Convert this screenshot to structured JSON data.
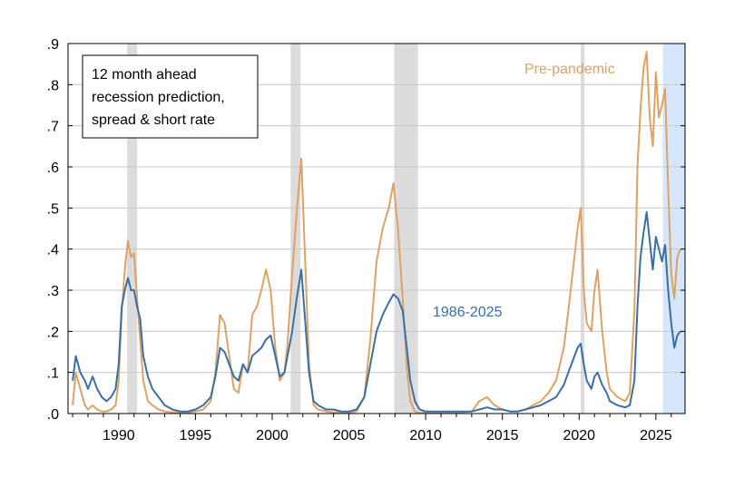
{
  "chart_data": {
    "type": "line",
    "title": "",
    "xlabel": "",
    "ylabel": "",
    "xlim": [
      1986.7,
      2026.9
    ],
    "ylim": [
      0,
      0.9
    ],
    "x_ticks": [
      1990,
      1995,
      2000,
      2005,
      2010,
      2015,
      2020,
      2025
    ],
    "x_tick_labels": [
      "1990",
      "1995",
      "2000",
      "2005",
      "2010",
      "2015",
      "2020",
      "2025"
    ],
    "y_ticks": [
      0,
      0.1,
      0.2,
      0.3,
      0.4,
      0.5,
      0.6,
      0.7,
      0.8,
      0.9
    ],
    "y_tick_labels": [
      ".0",
      ".1",
      ".2",
      ".3",
      ".4",
      ".5",
      ".6",
      ".7",
      ".8",
      ".9"
    ],
    "grid": true,
    "annotation_box": {
      "lines": [
        "12 month ahead",
        "recession prediction,",
        "spread & short rate"
      ]
    },
    "recession_shading": [
      {
        "start": 1990.55,
        "end": 1991.2
      },
      {
        "start": 2001.2,
        "end": 2001.85
      },
      {
        "start": 2007.95,
        "end": 2009.5
      },
      {
        "start": 2020.1,
        "end": 2020.35
      }
    ],
    "forecast_shading": {
      "start": 2025.45,
      "end": 2026.9
    },
    "series": [
      {
        "name": "1986-2025",
        "color": "#3a6ea5",
        "label_position": "middle-right",
        "points": [
          [
            1987.0,
            0.08
          ],
          [
            1987.2,
            0.14
          ],
          [
            1987.5,
            0.1
          ],
          [
            1987.8,
            0.08
          ],
          [
            1988.0,
            0.06
          ],
          [
            1988.3,
            0.09
          ],
          [
            1988.6,
            0.06
          ],
          [
            1988.9,
            0.04
          ],
          [
            1989.2,
            0.03
          ],
          [
            1989.5,
            0.04
          ],
          [
            1989.8,
            0.06
          ],
          [
            1990.0,
            0.12
          ],
          [
            1990.2,
            0.26
          ],
          [
            1990.4,
            0.3
          ],
          [
            1990.6,
            0.33
          ],
          [
            1990.8,
            0.3
          ],
          [
            1991.0,
            0.3
          ],
          [
            1991.2,
            0.26
          ],
          [
            1991.4,
            0.23
          ],
          [
            1991.6,
            0.14
          ],
          [
            1991.9,
            0.09
          ],
          [
            1992.2,
            0.06
          ],
          [
            1992.6,
            0.04
          ],
          [
            1993.0,
            0.02
          ],
          [
            1993.5,
            0.01
          ],
          [
            1994.0,
            0.005
          ],
          [
            1994.5,
            0.005
          ],
          [
            1995.0,
            0.01
          ],
          [
            1995.5,
            0.02
          ],
          [
            1996.0,
            0.04
          ],
          [
            1996.3,
            0.09
          ],
          [
            1996.6,
            0.16
          ],
          [
            1996.9,
            0.15
          ],
          [
            1997.2,
            0.12
          ],
          [
            1997.5,
            0.09
          ],
          [
            1997.8,
            0.08
          ],
          [
            1998.1,
            0.12
          ],
          [
            1998.4,
            0.1
          ],
          [
            1998.7,
            0.14
          ],
          [
            1999.0,
            0.15
          ],
          [
            1999.3,
            0.16
          ],
          [
            1999.6,
            0.18
          ],
          [
            1999.9,
            0.19
          ],
          [
            2000.2,
            0.14
          ],
          [
            2000.5,
            0.09
          ],
          [
            2000.8,
            0.1
          ],
          [
            2001.0,
            0.14
          ],
          [
            2001.3,
            0.2
          ],
          [
            2001.6,
            0.28
          ],
          [
            2001.9,
            0.35
          ],
          [
            2002.1,
            0.25
          ],
          [
            2002.4,
            0.1
          ],
          [
            2002.7,
            0.03
          ],
          [
            2003.0,
            0.02
          ],
          [
            2003.5,
            0.01
          ],
          [
            2004.0,
            0.01
          ],
          [
            2004.5,
            0.005
          ],
          [
            2005.0,
            0.005
          ],
          [
            2005.5,
            0.01
          ],
          [
            2006.0,
            0.04
          ],
          [
            2006.4,
            0.12
          ],
          [
            2006.8,
            0.2
          ],
          [
            2007.2,
            0.24
          ],
          [
            2007.6,
            0.27
          ],
          [
            2007.9,
            0.29
          ],
          [
            2008.2,
            0.28
          ],
          [
            2008.5,
            0.25
          ],
          [
            2008.8,
            0.15
          ],
          [
            2009.0,
            0.08
          ],
          [
            2009.3,
            0.03
          ],
          [
            2009.6,
            0.01
          ],
          [
            2010.0,
            0.005
          ],
          [
            2011.0,
            0.005
          ],
          [
            2012.0,
            0.005
          ],
          [
            2013.0,
            0.005
          ],
          [
            2013.5,
            0.01
          ],
          [
            2014.0,
            0.015
          ],
          [
            2014.5,
            0.01
          ],
          [
            2015.0,
            0.01
          ],
          [
            2015.5,
            0.005
          ],
          [
            2016.0,
            0.005
          ],
          [
            2016.5,
            0.01
          ],
          [
            2017.0,
            0.015
          ],
          [
            2017.5,
            0.02
          ],
          [
            2018.0,
            0.03
          ],
          [
            2018.5,
            0.04
          ],
          [
            2019.0,
            0.07
          ],
          [
            2019.3,
            0.1
          ],
          [
            2019.6,
            0.13
          ],
          [
            2019.9,
            0.16
          ],
          [
            2020.1,
            0.17
          ],
          [
            2020.3,
            0.12
          ],
          [
            2020.5,
            0.08
          ],
          [
            2020.8,
            0.06
          ],
          [
            2021.0,
            0.09
          ],
          [
            2021.2,
            0.1
          ],
          [
            2021.5,
            0.07
          ],
          [
            2021.8,
            0.05
          ],
          [
            2022.0,
            0.03
          ],
          [
            2022.5,
            0.02
          ],
          [
            2023.0,
            0.015
          ],
          [
            2023.3,
            0.02
          ],
          [
            2023.6,
            0.08
          ],
          [
            2023.8,
            0.26
          ],
          [
            2024.0,
            0.38
          ],
          [
            2024.2,
            0.44
          ],
          [
            2024.4,
            0.49
          ],
          [
            2024.6,
            0.42
          ],
          [
            2024.8,
            0.35
          ],
          [
            2025.0,
            0.43
          ],
          [
            2025.2,
            0.4
          ],
          [
            2025.4,
            0.37
          ],
          [
            2025.6,
            0.41
          ],
          [
            2025.8,
            0.3
          ],
          [
            2026.0,
            0.22
          ],
          [
            2026.2,
            0.16
          ],
          [
            2026.4,
            0.19
          ],
          [
            2026.6,
            0.2
          ]
        ]
      },
      {
        "name": "Pre-pandemic",
        "color": "#dda266",
        "label_position": "top-right",
        "points": [
          [
            1987.0,
            0.02
          ],
          [
            1987.2,
            0.1
          ],
          [
            1987.5,
            0.06
          ],
          [
            1987.8,
            0.02
          ],
          [
            1988.0,
            0.01
          ],
          [
            1988.3,
            0.02
          ],
          [
            1988.6,
            0.01
          ],
          [
            1988.9,
            0.005
          ],
          [
            1989.2,
            0.005
          ],
          [
            1989.5,
            0.01
          ],
          [
            1989.8,
            0.02
          ],
          [
            1990.0,
            0.08
          ],
          [
            1990.2,
            0.25
          ],
          [
            1990.4,
            0.35
          ],
          [
            1990.6,
            0.42
          ],
          [
            1990.8,
            0.38
          ],
          [
            1991.0,
            0.39
          ],
          [
            1991.2,
            0.28
          ],
          [
            1991.4,
            0.18
          ],
          [
            1991.6,
            0.08
          ],
          [
            1991.9,
            0.03
          ],
          [
            1992.2,
            0.02
          ],
          [
            1992.6,
            0.01
          ],
          [
            1993.0,
            0.005
          ],
          [
            1993.5,
            0.003
          ],
          [
            1994.0,
            0.002
          ],
          [
            1994.5,
            0.002
          ],
          [
            1995.0,
            0.005
          ],
          [
            1995.5,
            0.01
          ],
          [
            1996.0,
            0.03
          ],
          [
            1996.3,
            0.1
          ],
          [
            1996.6,
            0.24
          ],
          [
            1996.9,
            0.22
          ],
          [
            1997.2,
            0.14
          ],
          [
            1997.5,
            0.06
          ],
          [
            1997.8,
            0.05
          ],
          [
            1998.1,
            0.12
          ],
          [
            1998.4,
            0.1
          ],
          [
            1998.7,
            0.24
          ],
          [
            1999.0,
            0.26
          ],
          [
            1999.3,
            0.3
          ],
          [
            1999.6,
            0.35
          ],
          [
            1999.9,
            0.3
          ],
          [
            2000.2,
            0.16
          ],
          [
            2000.5,
            0.08
          ],
          [
            2000.8,
            0.1
          ],
          [
            2001.0,
            0.17
          ],
          [
            2001.3,
            0.34
          ],
          [
            2001.6,
            0.49
          ],
          [
            2001.9,
            0.62
          ],
          [
            2002.1,
            0.42
          ],
          [
            2002.4,
            0.12
          ],
          [
            2002.7,
            0.02
          ],
          [
            2003.0,
            0.01
          ],
          [
            2003.5,
            0.005
          ],
          [
            2004.0,
            0.003
          ],
          [
            2004.5,
            0.002
          ],
          [
            2005.0,
            0.002
          ],
          [
            2005.5,
            0.005
          ],
          [
            2006.0,
            0.04
          ],
          [
            2006.4,
            0.18
          ],
          [
            2006.8,
            0.37
          ],
          [
            2007.2,
            0.45
          ],
          [
            2007.6,
            0.5
          ],
          [
            2007.9,
            0.56
          ],
          [
            2008.2,
            0.45
          ],
          [
            2008.5,
            0.28
          ],
          [
            2008.8,
            0.1
          ],
          [
            2009.0,
            0.03
          ],
          [
            2009.3,
            0.005
          ],
          [
            2009.6,
            0.002
          ],
          [
            2010.0,
            0.002
          ],
          [
            2011.0,
            0.002
          ],
          [
            2012.0,
            0.002
          ],
          [
            2013.0,
            0.005
          ],
          [
            2013.5,
            0.03
          ],
          [
            2014.0,
            0.04
          ],
          [
            2014.5,
            0.02
          ],
          [
            2015.0,
            0.01
          ],
          [
            2015.5,
            0.005
          ],
          [
            2016.0,
            0.005
          ],
          [
            2016.5,
            0.01
          ],
          [
            2017.0,
            0.02
          ],
          [
            2017.5,
            0.03
          ],
          [
            2018.0,
            0.05
          ],
          [
            2018.5,
            0.08
          ],
          [
            2019.0,
            0.16
          ],
          [
            2019.3,
            0.25
          ],
          [
            2019.6,
            0.35
          ],
          [
            2019.9,
            0.45
          ],
          [
            2020.1,
            0.5
          ],
          [
            2020.3,
            0.3
          ],
          [
            2020.5,
            0.22
          ],
          [
            2020.8,
            0.2
          ],
          [
            2021.0,
            0.3
          ],
          [
            2021.2,
            0.35
          ],
          [
            2021.5,
            0.2
          ],
          [
            2021.8,
            0.1
          ],
          [
            2022.0,
            0.06
          ],
          [
            2022.5,
            0.04
          ],
          [
            2023.0,
            0.03
          ],
          [
            2023.3,
            0.05
          ],
          [
            2023.6,
            0.25
          ],
          [
            2023.8,
            0.6
          ],
          [
            2024.0,
            0.74
          ],
          [
            2024.2,
            0.84
          ],
          [
            2024.4,
            0.88
          ],
          [
            2024.6,
            0.72
          ],
          [
            2024.8,
            0.65
          ],
          [
            2025.0,
            0.83
          ],
          [
            2025.2,
            0.72
          ],
          [
            2025.4,
            0.75
          ],
          [
            2025.6,
            0.79
          ],
          [
            2025.8,
            0.55
          ],
          [
            2026.0,
            0.34
          ],
          [
            2026.2,
            0.28
          ],
          [
            2026.4,
            0.38
          ],
          [
            2026.6,
            0.4
          ]
        ]
      }
    ]
  }
}
